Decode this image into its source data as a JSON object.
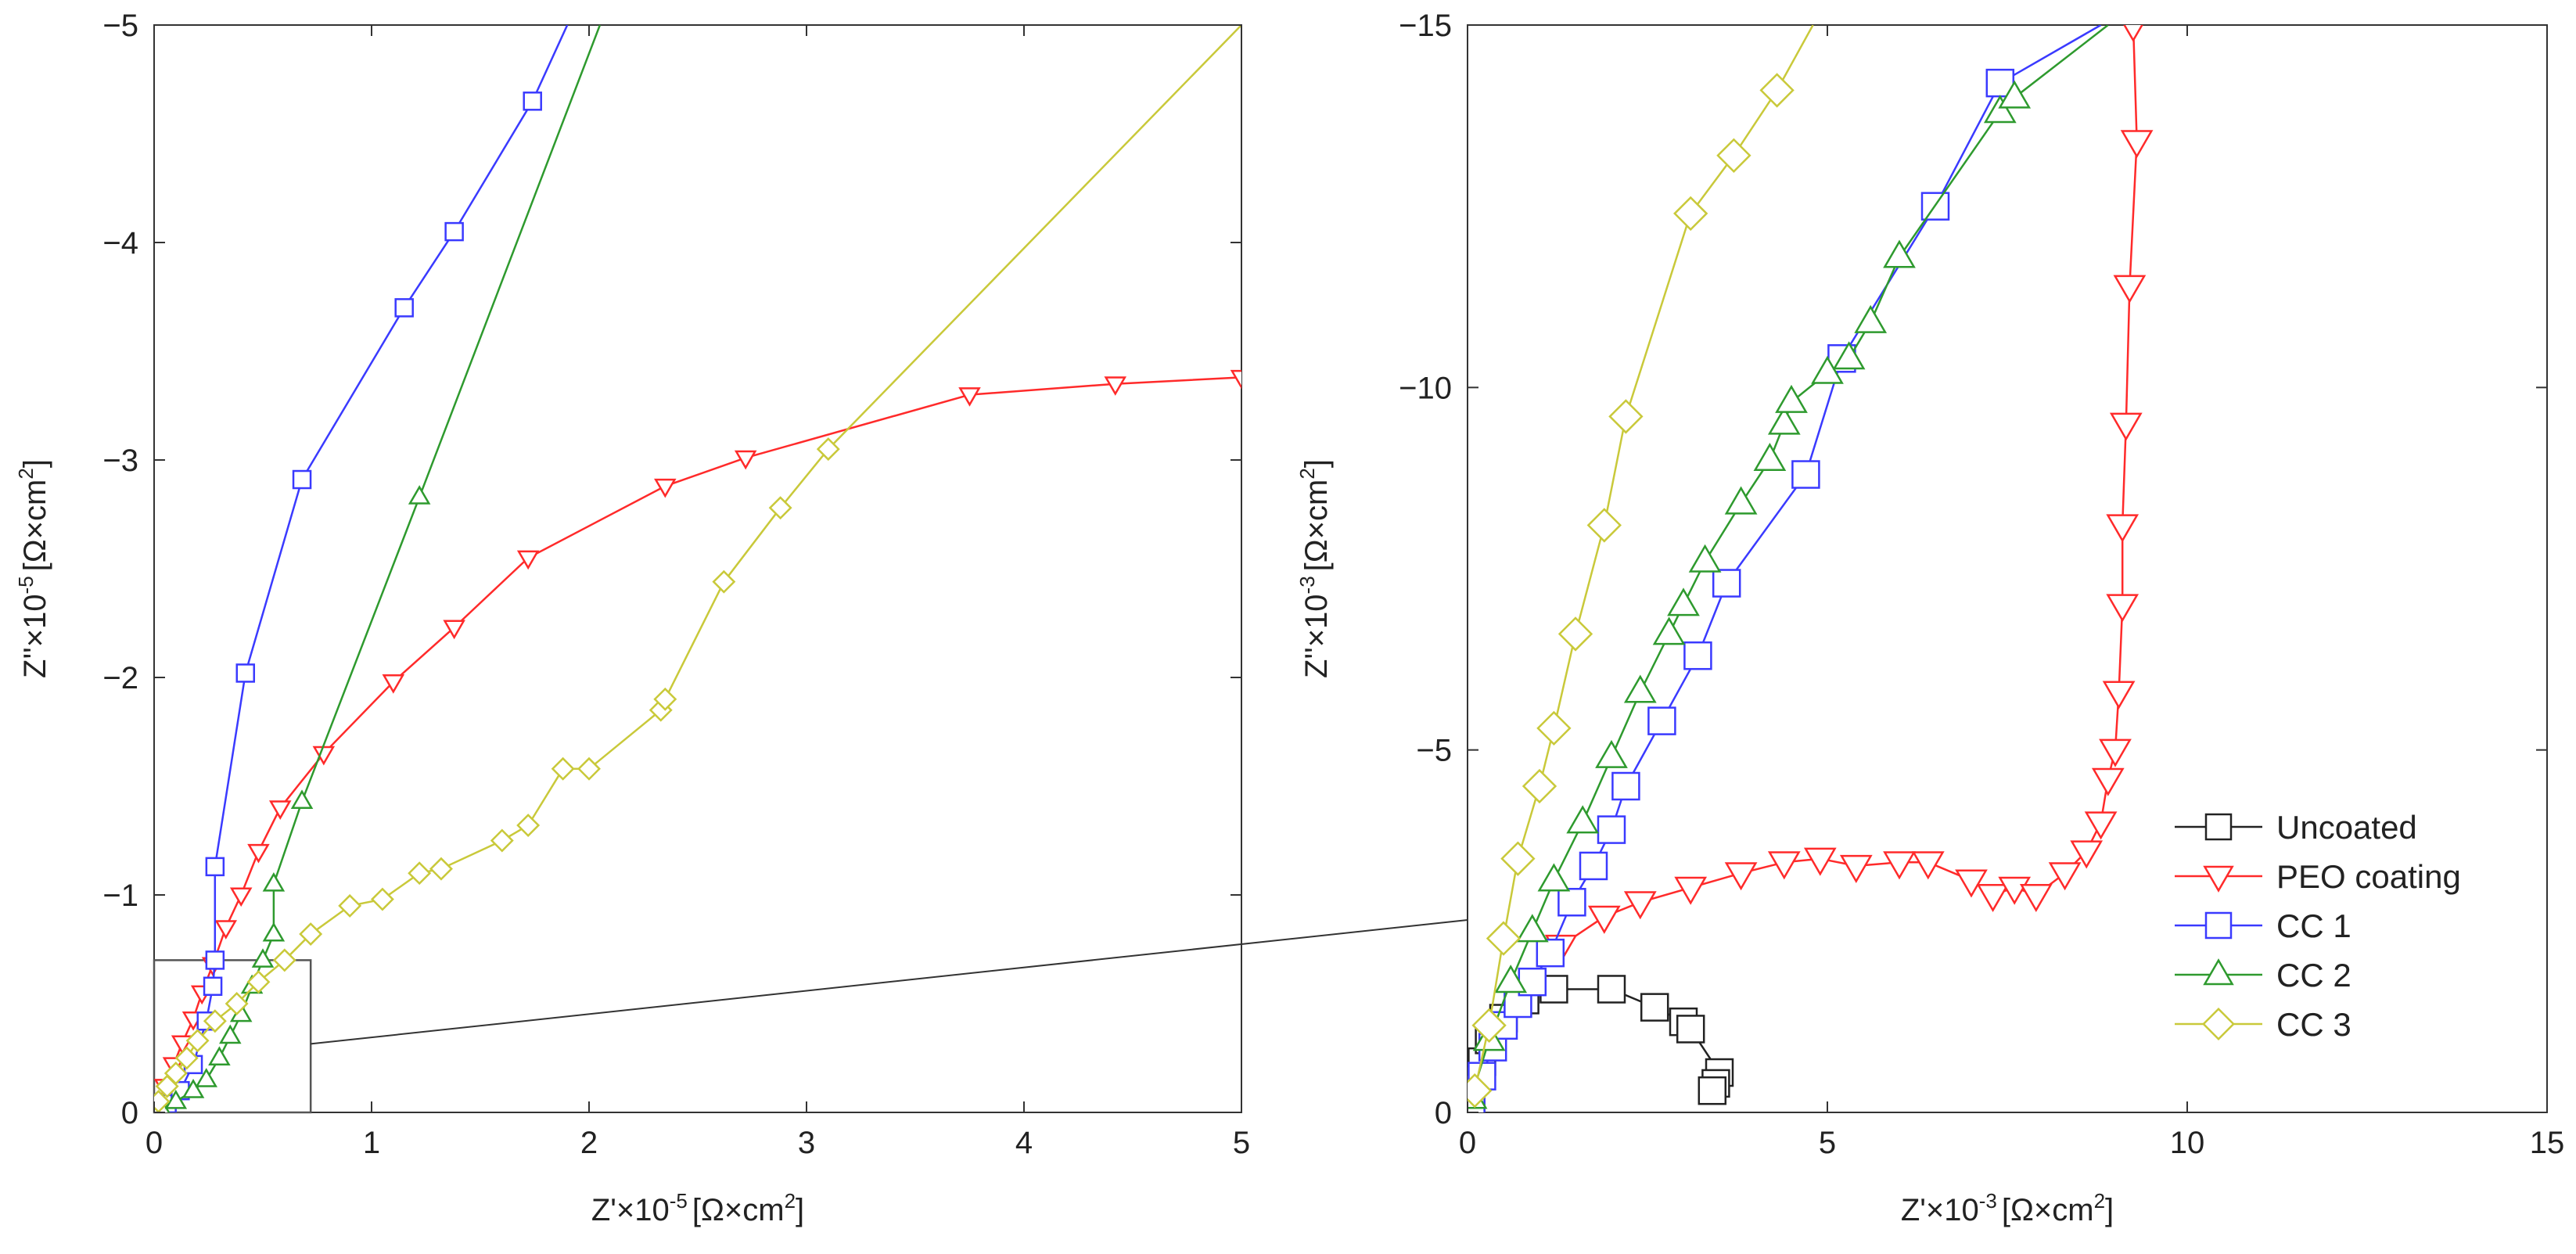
{
  "chart_data": [
    {
      "type": "line",
      "name": "left-panel",
      "xlabel": "Z'×10",
      "xlabel_exp": "-5",
      "xlabel_unit": "[Ω×cm",
      "xlabel_unit_exp": "2",
      "xlabel_tail": "]",
      "ylabel": "Z''×10",
      "ylabel_exp": "-5",
      "ylabel_unit": "[Ω×cm",
      "ylabel_unit_exp": "2",
      "ylabel_tail": "]",
      "xlim": [
        0,
        5
      ],
      "ylim": [
        0,
        -5
      ],
      "xticks": [
        0,
        1,
        2,
        3,
        4,
        5
      ],
      "xtick_labels": [
        "0",
        "1",
        "2",
        "3",
        "4",
        "5"
      ],
      "yticks": [
        0,
        -1,
        -2,
        -3,
        -4,
        -5
      ],
      "ytick_labels": [
        "0",
        "−1",
        "−2",
        "−3",
        "−4",
        "−5"
      ],
      "zoom_box": {
        "x": [
          0,
          0.72
        ],
        "y": [
          0,
          -0.7
        ]
      },
      "series": [
        {
          "name": "PEO coating",
          "marker": "triangle-down",
          "x": [
            0.02,
            0.05,
            0.09,
            0.13,
            0.18,
            0.22,
            0.27,
            0.33,
            0.4,
            0.48,
            0.58,
            0.78,
            1.1,
            1.38,
            1.72,
            2.35,
            2.72,
            3.75,
            4.42,
            5.0
          ],
          "y": [
            -0.04,
            -0.12,
            -0.22,
            -0.32,
            -0.43,
            -0.55,
            -0.68,
            -0.85,
            -1.0,
            -1.2,
            -1.4,
            -1.65,
            -1.98,
            -2.23,
            -2.55,
            -2.88,
            -3.01,
            -3.3,
            -3.35,
            -3.38
          ]
        },
        {
          "name": "CC 1",
          "marker": "square",
          "x": [
            0.02,
            0.06,
            0.12,
            0.18,
            0.24,
            0.27,
            0.28,
            0.28,
            0.42,
            0.68,
            1.15,
            1.38,
            1.74,
            1.9
          ],
          "y": [
            -0.01,
            -0.04,
            -0.1,
            -0.22,
            -0.42,
            -0.58,
            -0.7,
            -1.13,
            -2.02,
            -2.91,
            -3.7,
            -4.05,
            -4.65,
            -5.0
          ]
        },
        {
          "name": "CC 2",
          "marker": "triangle-up",
          "x": [
            0.03,
            0.1,
            0.18,
            0.24,
            0.3,
            0.35,
            0.4,
            0.45,
            0.5,
            0.55,
            0.55,
            0.68,
            1.22,
            2.05
          ],
          "y": [
            -0.02,
            -0.05,
            -0.1,
            -0.15,
            -0.25,
            -0.35,
            -0.45,
            -0.58,
            -0.7,
            -0.82,
            -1.05,
            -1.43,
            -2.83,
            -5.0
          ]
        },
        {
          "name": "CC 3",
          "marker": "diamond",
          "x": [
            0.02,
            0.06,
            0.1,
            0.15,
            0.2,
            0.28,
            0.38,
            0.48,
            0.6,
            0.72,
            0.9,
            1.05,
            1.22,
            1.32,
            1.6,
            1.72,
            1.88,
            2.0,
            2.33,
            2.35,
            2.62,
            2.88,
            3.1,
            5.0
          ],
          "y": [
            -0.05,
            -0.12,
            -0.18,
            -0.25,
            -0.33,
            -0.42,
            -0.5,
            -0.6,
            -0.7,
            -0.82,
            -0.95,
            -0.98,
            -1.1,
            -1.12,
            -1.25,
            -1.32,
            -1.58,
            -1.58,
            -1.85,
            -1.9,
            -2.44,
            -2.78,
            -3.05,
            -5.0
          ]
        }
      ]
    },
    {
      "type": "line",
      "name": "right-panel",
      "xlabel": "Z'×10",
      "xlabel_exp": "-3",
      "xlabel_unit": "[Ω×cm",
      "xlabel_unit_exp": "2",
      "xlabel_tail": "]",
      "ylabel": "Z''×10",
      "ylabel_exp": "-3",
      "ylabel_unit": "[Ω×cm",
      "ylabel_unit_exp": "2",
      "ylabel_tail": "]",
      "xlim": [
        0,
        15
      ],
      "ylim": [
        0,
        -15
      ],
      "xticks": [
        0,
        5,
        10,
        15
      ],
      "xtick_labels": [
        "0",
        "5",
        "10",
        "15"
      ],
      "yticks": [
        0,
        -5,
        -10,
        -15
      ],
      "ytick_labels": [
        "0",
        "−5",
        "−10",
        "−15"
      ],
      "legend_position": "bottom-right",
      "series": [
        {
          "name": "Uncoated",
          "marker": "square",
          "x": [
            0.0,
            0.05,
            0.1,
            0.2,
            0.3,
            0.5,
            0.8,
            1.2,
            2.0,
            2.6,
            3.0,
            3.1,
            3.5,
            3.45,
            3.4
          ],
          "y": [
            -0.02,
            -0.2,
            -0.45,
            -0.7,
            -1.0,
            -1.3,
            -1.55,
            -1.7,
            -1.7,
            -1.45,
            -1.25,
            -1.15,
            -0.55,
            -0.4,
            -0.3
          ]
        },
        {
          "name": "PEO coating",
          "marker": "triangle-down",
          "x": [
            1.3,
            1.9,
            2.4,
            3.1,
            3.8,
            4.4,
            4.9,
            5.4,
            6.0,
            6.4,
            7.0,
            7.3,
            7.6,
            7.9,
            8.3,
            8.6,
            8.8,
            8.9,
            9.0,
            9.05,
            9.1,
            9.1,
            9.15,
            9.2,
            9.3,
            9.25,
            9.3
          ],
          "y": [
            -2.3,
            -2.7,
            -2.9,
            -3.1,
            -3.3,
            -3.45,
            -3.5,
            -3.4,
            -3.45,
            -3.45,
            -3.2,
            -3.0,
            -3.1,
            -3.0,
            -3.3,
            -3.6,
            -4.0,
            -4.6,
            -5.0,
            -5.8,
            -7.0,
            -8.1,
            -9.5,
            -11.4,
            -13.4,
            -15.0,
            -15.0
          ]
        },
        {
          "name": "CC 1",
          "marker": "square",
          "x": [
            0.05,
            0.2,
            0.35,
            0.5,
            0.7,
            0.9,
            1.15,
            1.45,
            1.75,
            2.0,
            2.2,
            2.7,
            3.2,
            3.6,
            4.7,
            5.2,
            6.5,
            7.4,
            8.8
          ],
          "y": [
            -0.1,
            -0.5,
            -0.9,
            -1.2,
            -1.5,
            -1.8,
            -2.2,
            -2.9,
            -3.4,
            -3.9,
            -4.5,
            -5.4,
            -6.3,
            -7.3,
            -8.8,
            -10.4,
            -12.5,
            -14.2,
            -15.0
          ]
        },
        {
          "name": "CC 2",
          "marker": "triangle-up",
          "x": [
            0.05,
            0.3,
            0.6,
            0.9,
            1.2,
            1.6,
            2.0,
            2.4,
            2.8,
            3.0,
            3.3,
            3.8,
            4.2,
            4.4,
            4.5,
            5.0,
            5.3,
            5.6,
            6.0,
            7.4,
            7.6,
            8.9
          ],
          "y": [
            -0.2,
            -1.0,
            -1.8,
            -2.5,
            -3.2,
            -4.0,
            -4.9,
            -5.8,
            -6.6,
            -7.0,
            -7.6,
            -8.4,
            -9.0,
            -9.5,
            -9.8,
            -10.2,
            -10.4,
            -10.9,
            -11.8,
            -13.8,
            -14.0,
            -15.0
          ]
        },
        {
          "name": "CC 3",
          "marker": "diamond",
          "x": [
            0.1,
            0.3,
            0.5,
            0.7,
            1.0,
            1.2,
            1.5,
            1.9,
            2.2,
            3.1,
            3.7,
            4.3,
            4.8
          ],
          "y": [
            -0.3,
            -1.2,
            -2.4,
            -3.5,
            -4.5,
            -5.3,
            -6.6,
            -8.1,
            -9.6,
            -12.4,
            -13.2,
            -14.1,
            -15.0
          ]
        }
      ]
    }
  ],
  "legend": {
    "entries": [
      {
        "label": "Uncoated",
        "color": "#222222",
        "marker": "square"
      },
      {
        "label": "PEO coating",
        "color": "#ff2a2a",
        "marker": "triangle-down"
      },
      {
        "label": "CC 1",
        "color": "#3a3aff",
        "marker": "square"
      },
      {
        "label": "CC 2",
        "color": "#2e9a2e",
        "marker": "triangle-up"
      },
      {
        "label": "CC 3",
        "color": "#c9c93a",
        "marker": "diamond"
      }
    ]
  },
  "colors": {
    "Uncoated": "#222222",
    "PEO coating": "#ff2a2a",
    "CC 1": "#3a3aff",
    "CC 2": "#2e9a2e",
    "CC 3": "#c9c93a",
    "axis": "#333333",
    "zoom": "#555555"
  }
}
